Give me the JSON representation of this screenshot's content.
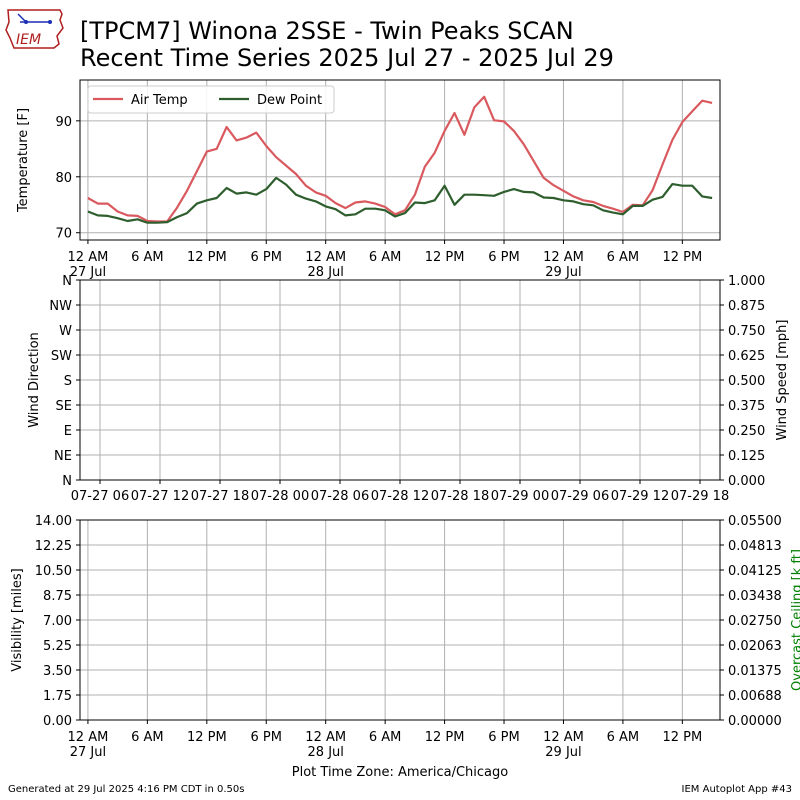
{
  "title_line1": "[TPCM7] Winona 2SSE - Twin Peaks SCAN",
  "title_line2": "Recent Time Series 2025 Jul 27 - 2025 Jul 29",
  "footer_left": "Generated at 29 Jul 2025 4:16 PM CDT in 0.50s",
  "footer_right": "IEM Autoplot App #43",
  "logo_text": "IEM",
  "xlabel_bottom": "Plot Time Zone: America/Chicago",
  "chart_data": [
    {
      "type": "line",
      "ylabel": "Temperature [F]",
      "ylim": [
        68.7,
        97.3
      ],
      "yticks": [
        70,
        80,
        90
      ],
      "grid": true,
      "legend": "top-left",
      "x_hours": [
        0,
        1,
        2,
        3,
        4,
        5,
        6,
        7,
        8,
        9,
        10,
        11,
        12,
        13,
        14,
        15,
        16,
        17,
        18,
        19,
        20,
        21,
        22,
        23,
        24,
        25,
        26,
        27,
        28,
        29,
        30,
        31,
        32,
        33,
        34,
        35,
        36,
        37,
        38,
        39,
        40,
        41,
        42,
        43,
        44,
        45,
        46,
        47,
        48,
        49,
        50,
        51,
        52,
        53,
        54,
        55,
        56,
        57,
        58,
        59,
        60,
        61,
        62,
        63
      ],
      "xticks": [
        {
          "hour": 0,
          "label": "12 AM",
          "sub": "27 Jul"
        },
        {
          "hour": 6,
          "label": "6 AM",
          "sub": ""
        },
        {
          "hour": 12,
          "label": "12 PM",
          "sub": ""
        },
        {
          "hour": 18,
          "label": "6 PM",
          "sub": ""
        },
        {
          "hour": 24,
          "label": "12 AM",
          "sub": "28 Jul"
        },
        {
          "hour": 30,
          "label": "6 AM",
          "sub": ""
        },
        {
          "hour": 36,
          "label": "12 PM",
          "sub": ""
        },
        {
          "hour": 42,
          "label": "6 PM",
          "sub": ""
        },
        {
          "hour": 48,
          "label": "12 AM",
          "sub": "29 Jul"
        },
        {
          "hour": 54,
          "label": "6 AM",
          "sub": ""
        },
        {
          "hour": 60,
          "label": "12 PM",
          "sub": ""
        }
      ],
      "series": [
        {
          "name": "Air Temp",
          "color": "#d9595f",
          "values": [
            76.2,
            75.2,
            75.2,
            73.8,
            73.1,
            73.0,
            72.1,
            72.0,
            72.0,
            74.5,
            77.5,
            81.0,
            84.5,
            85.0,
            88.9,
            86.5,
            87.0,
            87.9,
            85.5,
            83.5,
            82.0,
            80.5,
            78.4,
            77.2,
            76.6,
            75.3,
            74.4,
            75.4,
            75.6,
            75.2,
            74.6,
            73.3,
            74.0,
            76.8,
            81.8,
            84.3,
            88.2,
            91.4,
            87.5,
            92.4,
            94.3,
            90.1,
            89.9,
            88.2,
            85.8,
            82.8,
            79.8,
            78.5,
            77.5,
            76.5,
            75.8,
            75.5,
            74.8,
            74.3,
            73.7,
            75.0,
            74.9,
            77.6,
            82.2,
            86.6,
            89.8,
            91.7,
            93.6,
            93.2
          ]
        },
        {
          "name": "Dew Point",
          "color": "#2e5e2e",
          "values": [
            73.8,
            73.1,
            73.0,
            72.6,
            72.1,
            72.4,
            71.8,
            71.8,
            71.9,
            72.8,
            73.5,
            75.2,
            75.8,
            76.2,
            78.0,
            77.0,
            77.2,
            76.8,
            77.8,
            79.8,
            78.6,
            76.8,
            76.1,
            75.6,
            74.7,
            74.2,
            73.1,
            73.3,
            74.3,
            74.3,
            74.0,
            72.9,
            73.5,
            75.4,
            75.3,
            75.8,
            78.4,
            75.0,
            76.8,
            76.8,
            76.7,
            76.6,
            77.3,
            77.8,
            77.3,
            77.2,
            76.3,
            76.2,
            75.8,
            75.6,
            75.1,
            74.9,
            74.0,
            73.6,
            73.3,
            74.8,
            74.8,
            75.9,
            76.4,
            78.7,
            78.4,
            78.4,
            76.5,
            76.2
          ]
        }
      ]
    },
    {
      "type": "line",
      "ylabel": "Wind Direction",
      "y2label": "Wind Speed [mph]",
      "yticklabels": [
        "N",
        "NE",
        "E",
        "SE",
        "S",
        "SW",
        "W",
        "NW",
        "N"
      ],
      "y2ticklabels": [
        "0.000",
        "0.125",
        "0.250",
        "0.375",
        "0.500",
        "0.625",
        "0.750",
        "0.875",
        "1.000"
      ],
      "xticklabels": [
        "07-27 06",
        "07-27 12",
        "07-27 18",
        "07-28 00",
        "07-28 06",
        "07-28 12",
        "07-28 18",
        "07-29 00",
        "07-29 06",
        "07-29 12",
        "07-29 18"
      ],
      "grid": true,
      "series": []
    },
    {
      "type": "line",
      "ylabel": "Visibility [miles]",
      "y2label": "Overcast Ceiling [k ft]",
      "y2label_color": "#008000",
      "yticklabels": [
        "0.00",
        "1.75",
        "3.50",
        "5.25",
        "7.00",
        "8.75",
        "10.50",
        "12.25",
        "14.00"
      ],
      "y2ticklabels": [
        "0.00000",
        "0.00688",
        "0.01375",
        "0.02063",
        "0.02750",
        "0.03438",
        "0.04125",
        "0.04813",
        "0.05500"
      ],
      "grid": true,
      "series": []
    }
  ]
}
